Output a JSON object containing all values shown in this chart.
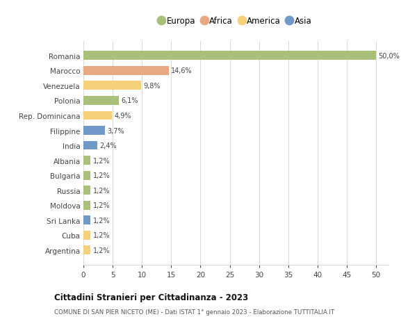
{
  "countries": [
    "Romania",
    "Marocco",
    "Venezuela",
    "Polonia",
    "Rep. Dominicana",
    "Filippine",
    "India",
    "Albania",
    "Bulgaria",
    "Russia",
    "Moldova",
    "Sri Lanka",
    "Cuba",
    "Argentina"
  ],
  "values": [
    50.0,
    14.6,
    9.8,
    6.1,
    4.9,
    3.7,
    2.4,
    1.2,
    1.2,
    1.2,
    1.2,
    1.2,
    1.2,
    1.2
  ],
  "labels": [
    "50,0%",
    "14,6%",
    "9,8%",
    "6,1%",
    "4,9%",
    "3,7%",
    "2,4%",
    "1,2%",
    "1,2%",
    "1,2%",
    "1,2%",
    "1,2%",
    "1,2%",
    "1,2%"
  ],
  "continents": [
    "Europa",
    "Africa",
    "America",
    "Europa",
    "America",
    "Asia",
    "Asia",
    "Europa",
    "Europa",
    "Europa",
    "Europa",
    "Asia",
    "America",
    "America"
  ],
  "colors": {
    "Europa": "#a8c07a",
    "Africa": "#e8a882",
    "America": "#f5d07a",
    "Asia": "#7098c8"
  },
  "legend_order": [
    "Europa",
    "Africa",
    "America",
    "Asia"
  ],
  "title1": "Cittadini Stranieri per Cittadinanza - 2023",
  "title2": "COMUNE DI SAN PIER NICETO (ME) - Dati ISTAT 1° gennaio 2023 - Elaborazione TUTTITALIA.IT",
  "xlim_max": 52,
  "xticks": [
    0,
    5,
    10,
    15,
    20,
    25,
    30,
    35,
    40,
    45,
    50
  ],
  "background_color": "#ffffff",
  "grid_color": "#d8d8d8"
}
